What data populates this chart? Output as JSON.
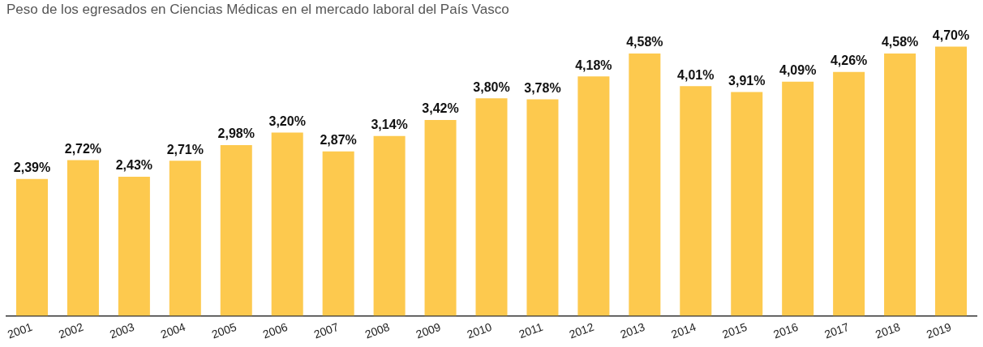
{
  "chart_data": {
    "type": "bar",
    "title": "Peso de los egresados en Ciencias Médicas en el mercado laboral del País Vasco",
    "categories": [
      "2001",
      "2002",
      "2003",
      "2004",
      "2005",
      "2006",
      "2007",
      "2008",
      "2009",
      "2010",
      "2011",
      "2012",
      "2013",
      "2014",
      "2015",
      "2016",
      "2017",
      "2018",
      "2019"
    ],
    "values": [
      2.39,
      2.72,
      2.43,
      2.71,
      2.98,
      3.2,
      2.87,
      3.14,
      3.42,
      3.8,
      3.78,
      4.18,
      4.58,
      4.01,
      3.91,
      4.09,
      4.26,
      4.58,
      4.7
    ],
    "value_labels": [
      "2,39%",
      "2,72%",
      "2,43%",
      "2,71%",
      "2,98%",
      "3,20%",
      "2,87%",
      "3,14%",
      "3,42%",
      "3,80%",
      "3,78%",
      "4,18%",
      "4,58%",
      "4,01%",
      "3,91%",
      "4,09%",
      "4,26%",
      "4,58%",
      "4,70%"
    ],
    "color": "#fdc94e",
    "legend": false,
    "grid": false
  }
}
